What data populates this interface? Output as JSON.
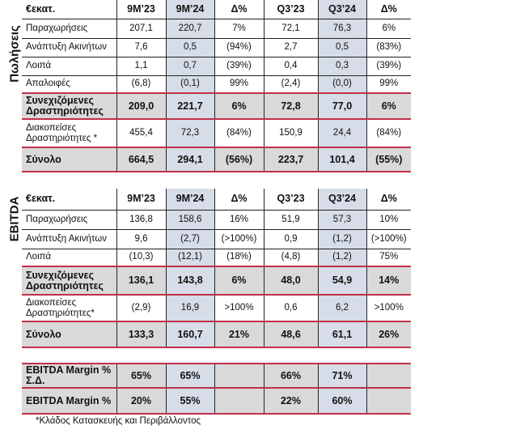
{
  "columns": [
    "€εκατ.",
    "9M’23",
    "9M’24",
    "Δ%",
    "Q3’23",
    "Q3’24",
    "Δ%"
  ],
  "sales": {
    "side_label": "Πωλήσεις",
    "rows": [
      {
        "label": "Παραχωρήσεις",
        "values": [
          "207,1",
          "220,7",
          "7%",
          "72,1",
          "76,3",
          "6%"
        ]
      },
      {
        "label": "Ανάπτυξη Ακινήτων",
        "values": [
          "7,6",
          "0,5",
          "(94%)",
          "2,7",
          "0,5",
          "(83%)"
        ]
      },
      {
        "label": "Λοιπά",
        "values": [
          "1,1",
          "0,7",
          "(39%)",
          "0,4",
          "0,3",
          "(39%)"
        ]
      },
      {
        "label": "Απαλοιφές",
        "values": [
          "(6,8)",
          "(0,1)",
          "99%",
          "(2,4)",
          "(0,0)",
          "99%"
        ]
      },
      {
        "label": "Συνεχιζόμενες Δραστηριότητες",
        "values": [
          "209,0",
          "221,7",
          "6%",
          "72,8",
          "77,0",
          "6%"
        ],
        "bold": true
      },
      {
        "label": "Διακοπείσες Δραστηριότητες *",
        "values": [
          "455,4",
          "72,3",
          "(84%)",
          "150,9",
          "24,4",
          "(84%)"
        ]
      },
      {
        "label": "Σύνολο",
        "values": [
          "664,5",
          "294,1",
          "(56%)",
          "223,7",
          "101,4",
          "(55%)"
        ],
        "bold": true
      }
    ]
  },
  "ebitda": {
    "side_label": "EBITDA",
    "rows": [
      {
        "label": "Παραχωρήσεις",
        "values": [
          "136,8",
          "158,6",
          "16%",
          "51,9",
          "57,3",
          "10%"
        ]
      },
      {
        "label": "Ανάπτυξη Ακινήτων",
        "values": [
          "9,6",
          "(2,7)",
          "(>100%)",
          "0,9",
          "(1,2)",
          "(>100%)"
        ]
      },
      {
        "label": "Λοιπά",
        "values": [
          "(10,3)",
          "(12,1)",
          "(18%)",
          "(4,8)",
          "(1,2)",
          "75%"
        ]
      },
      {
        "label": "Συνεχιζόμενες Δραστηριότητες",
        "values": [
          "136,1",
          "143,8",
          "6%",
          "48,0",
          "54,9",
          "14%"
        ],
        "bold": true
      },
      {
        "label": "Διακοπείσες Δραστηριότητες*",
        "values": [
          "(2,9)",
          "16,9",
          ">100%",
          "0,6",
          "6,2",
          ">100%"
        ]
      },
      {
        "label": "Σύνολο",
        "values": [
          "133,3",
          "160,7",
          "21%",
          "48,6",
          "61,1",
          "26%"
        ],
        "bold": true
      }
    ]
  },
  "margins": {
    "rows": [
      {
        "label": "EBITDA Margin % Σ.Δ.",
        "values": [
          "65%",
          "65%",
          "",
          "66%",
          "71%",
          ""
        ],
        "bold": true
      },
      {
        "label": "EBITDA Margin %",
        "values": [
          "20%",
          "55%",
          "",
          "22%",
          "60%",
          ""
        ],
        "bold": true
      }
    ]
  },
  "footnote": "*Κλάδος Κατασκευής και Περιβάλλοντος"
}
